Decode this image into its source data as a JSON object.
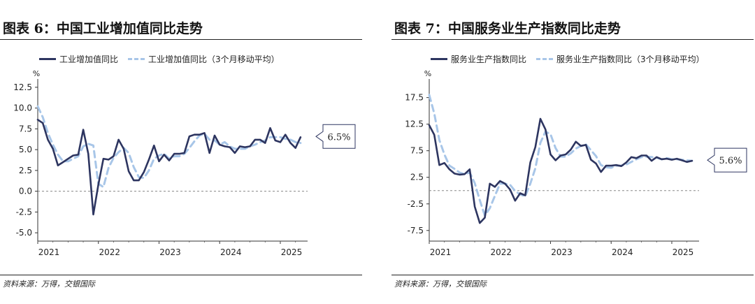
{
  "charts": [
    {
      "title": "图表 6：中国工业增加值同比走势",
      "legend": [
        "工业增加值同比",
        "工业增加值同比（3个月移动平均）"
      ],
      "source": "资料来源：万得，交银国际",
      "callout": "6.5%"
    },
    {
      "title": "图表 7：中国服务业生产指数同比走势",
      "legend": [
        "服务业生产指数同比",
        "服务业生产指数同比（3个月移动平均）"
      ],
      "source": "资料来源：万得，交银国际",
      "callout": "5.6%"
    }
  ],
  "chart_data": [
    {
      "type": "line",
      "title": "图表 6：中国工业增加值同比走势",
      "ylabel": "%",
      "ylim": [
        -6.0,
        13.5
      ],
      "yticks": [
        12.5,
        10.0,
        7.5,
        5.0,
        2.5,
        0.0,
        -2.5,
        -5.0
      ],
      "ytick_labels": [
        "12.5",
        "10.0",
        "7.5",
        "5.0",
        "2.5",
        "0.0",
        "-2.5",
        "-5.0"
      ],
      "xlim": [
        2021.0,
        2025.45
      ],
      "xticks": [
        2021,
        2022,
        2023,
        2024,
        2025
      ],
      "xtick_labels": [
        "2021",
        "2022",
        "2023",
        "2024",
        "2025"
      ],
      "reference_line": 0,
      "annotation": "6.5%",
      "series": [
        {
          "name": "工业增加值同比",
          "style": "solid",
          "color": "#2d3560",
          "x": [
            2021.0,
            2021.083,
            2021.167,
            2021.25,
            2021.333,
            2021.417,
            2021.5,
            2021.583,
            2021.667,
            2021.75,
            2021.833,
            2021.917,
            2022.0,
            2022.083,
            2022.167,
            2022.25,
            2022.333,
            2022.417,
            2022.5,
            2022.583,
            2022.667,
            2022.75,
            2022.833,
            2022.917,
            2023.0,
            2023.083,
            2023.167,
            2023.25,
            2023.333,
            2023.417,
            2023.5,
            2023.583,
            2023.667,
            2023.75,
            2023.833,
            2023.917,
            2024.0,
            2024.083,
            2024.167,
            2024.25,
            2024.333,
            2024.417,
            2024.5,
            2024.583,
            2024.667,
            2024.75,
            2024.833,
            2024.917,
            2025.0,
            2025.083,
            2025.167,
            2025.25,
            2025.333
          ],
          "y": [
            8.6,
            8.2,
            6.2,
            5.1,
            3.1,
            3.5,
            3.9,
            4.3,
            4.4,
            7.4,
            4.5,
            -2.8,
            0.8,
            3.9,
            3.8,
            4.2,
            6.2,
            5.1,
            2.4,
            1.3,
            1.3,
            2.3,
            3.8,
            5.5,
            3.6,
            4.4,
            3.7,
            4.5,
            4.5,
            4.6,
            6.6,
            6.8,
            6.8,
            7.0,
            4.6,
            6.7,
            5.6,
            5.4,
            5.3,
            4.6,
            5.4,
            5.3,
            5.4,
            6.2,
            6.2,
            5.8,
            7.6,
            6.1,
            5.9,
            6.8,
            5.8,
            5.2,
            6.5
          ]
        },
        {
          "name": "工业增加值同比（3个月移动平均）",
          "style": "dashed",
          "color": "#a8c6e8",
          "x": [
            2021.0,
            2021.083,
            2021.167,
            2021.25,
            2021.333,
            2021.417,
            2021.5,
            2021.583,
            2021.667,
            2021.75,
            2021.833,
            2021.917,
            2022.0,
            2022.083,
            2022.167,
            2022.25,
            2022.333,
            2022.417,
            2022.5,
            2022.583,
            2022.667,
            2022.75,
            2022.833,
            2022.917,
            2023.0,
            2023.083,
            2023.167,
            2023.25,
            2023.333,
            2023.417,
            2023.5,
            2023.583,
            2023.667,
            2023.75,
            2023.833,
            2023.917,
            2024.0,
            2024.083,
            2024.167,
            2024.25,
            2024.333,
            2024.417,
            2024.5,
            2024.583,
            2024.667,
            2024.75,
            2024.833,
            2024.917,
            2025.0,
            2025.083,
            2025.167,
            2025.25,
            2025.333
          ],
          "y": [
            10.2,
            8.9,
            7.0,
            5.6,
            4.4,
            3.6,
            3.6,
            3.9,
            4.2,
            5.4,
            5.7,
            5.5,
            0.9,
            0.5,
            2.8,
            4.0,
            4.7,
            5.2,
            4.6,
            2.9,
            1.7,
            1.6,
            2.5,
            3.9,
            4.3,
            4.5,
            3.9,
            4.2,
            4.2,
            4.5,
            5.2,
            6.0,
            6.7,
            6.9,
            6.2,
            6.1,
            5.6,
            5.9,
            5.4,
            5.1,
            5.1,
            5.1,
            5.4,
            5.6,
            5.9,
            6.1,
            6.5,
            6.5,
            6.5,
            6.3,
            6.2,
            5.9,
            5.8
          ]
        }
      ]
    },
    {
      "type": "line",
      "title": "图表 7：中国服务业生产指数同比走势",
      "ylabel": "%",
      "ylim": [
        -9.5,
        21.0
      ],
      "yticks": [
        17.5,
        12.5,
        7.5,
        2.5,
        -2.5,
        -7.5
      ],
      "ytick_labels": [
        "17.5",
        "12.5",
        "7.5",
        "2.5",
        "-2.5",
        "-7.5"
      ],
      "xlim": [
        2021.0,
        2025.45
      ],
      "xticks": [
        2021,
        2022,
        2023,
        2024,
        2025
      ],
      "xtick_labels": [
        "2021",
        "2022",
        "2023",
        "2024",
        "2025"
      ],
      "reference_line": 0,
      "annotation": "5.6%",
      "series": [
        {
          "name": "服务业生产指数同比",
          "style": "solid",
          "color": "#2d3560",
          "x": [
            2021.0,
            2021.083,
            2021.167,
            2021.25,
            2021.333,
            2021.417,
            2021.5,
            2021.583,
            2021.667,
            2021.75,
            2021.833,
            2021.917,
            2022.0,
            2022.083,
            2022.167,
            2022.25,
            2022.333,
            2022.417,
            2022.5,
            2022.583,
            2022.667,
            2022.75,
            2022.833,
            2022.917,
            2023.0,
            2023.083,
            2023.167,
            2023.25,
            2023.333,
            2023.417,
            2023.5,
            2023.583,
            2023.667,
            2023.75,
            2023.833,
            2023.917,
            2024.0,
            2024.083,
            2024.167,
            2024.25,
            2024.333,
            2024.417,
            2024.5,
            2024.583,
            2024.667,
            2024.75,
            2024.833,
            2024.917,
            2025.0,
            2025.083,
            2025.167,
            2025.25,
            2025.333
          ],
          "y": [
            12.3,
            10.5,
            4.8,
            5.2,
            4.0,
            3.2,
            3.0,
            3.1,
            4.0,
            -3.0,
            -6.1,
            -5.1,
            1.3,
            0.7,
            1.8,
            1.3,
            0.2,
            -1.9,
            -0.5,
            -0.9,
            5.3,
            8.2,
            13.5,
            11.5,
            6.8,
            5.7,
            6.6,
            6.8,
            7.7,
            9.2,
            8.4,
            8.6,
            5.8,
            5.1,
            3.5,
            4.7,
            4.7,
            4.8,
            4.6,
            5.3,
            6.3,
            6.1,
            6.6,
            6.6,
            5.6,
            6.3,
            5.9,
            6.0,
            5.8,
            6.0,
            5.7,
            5.4,
            5.6
          ]
        },
        {
          "name": "服务业生产指数同比（3个月移动平均）",
          "style": "dashed",
          "color": "#a8c6e8",
          "x": [
            2021.0,
            2021.083,
            2021.167,
            2021.25,
            2021.333,
            2021.417,
            2021.5,
            2021.583,
            2021.667,
            2021.75,
            2021.833,
            2021.917,
            2022.0,
            2022.083,
            2022.167,
            2022.25,
            2022.333,
            2022.417,
            2022.5,
            2022.583,
            2022.667,
            2022.75,
            2022.833,
            2022.917,
            2023.0,
            2023.083,
            2023.167,
            2023.25,
            2023.333,
            2023.417,
            2023.5,
            2023.583,
            2023.667,
            2023.75,
            2023.833,
            2023.917,
            2024.0,
            2024.083,
            2024.167,
            2024.25,
            2024.333,
            2024.417,
            2024.5,
            2024.583,
            2024.667,
            2024.75,
            2024.833,
            2024.917,
            2025.0,
            2025.083,
            2025.167,
            2025.25,
            2025.333
          ],
          "y": [
            18.0,
            14.5,
            9.5,
            6.8,
            4.7,
            4.1,
            3.4,
            3.1,
            3.4,
            1.4,
            -1.8,
            -4.7,
            -3.3,
            -1.0,
            1.3,
            1.3,
            1.1,
            -0.1,
            -0.7,
            -1.1,
            1.3,
            4.2,
            9.0,
            11.1,
            10.6,
            8.0,
            6.4,
            6.4,
            7.0,
            7.9,
            8.4,
            8.7,
            7.6,
            6.5,
            4.8,
            4.4,
            4.3,
            4.7,
            4.7,
            4.9,
            5.4,
            5.9,
            6.3,
            6.4,
            6.3,
            6.2,
            5.9,
            6.1,
            5.9,
            5.9,
            5.8,
            5.7,
            5.6
          ]
        }
      ]
    }
  ]
}
